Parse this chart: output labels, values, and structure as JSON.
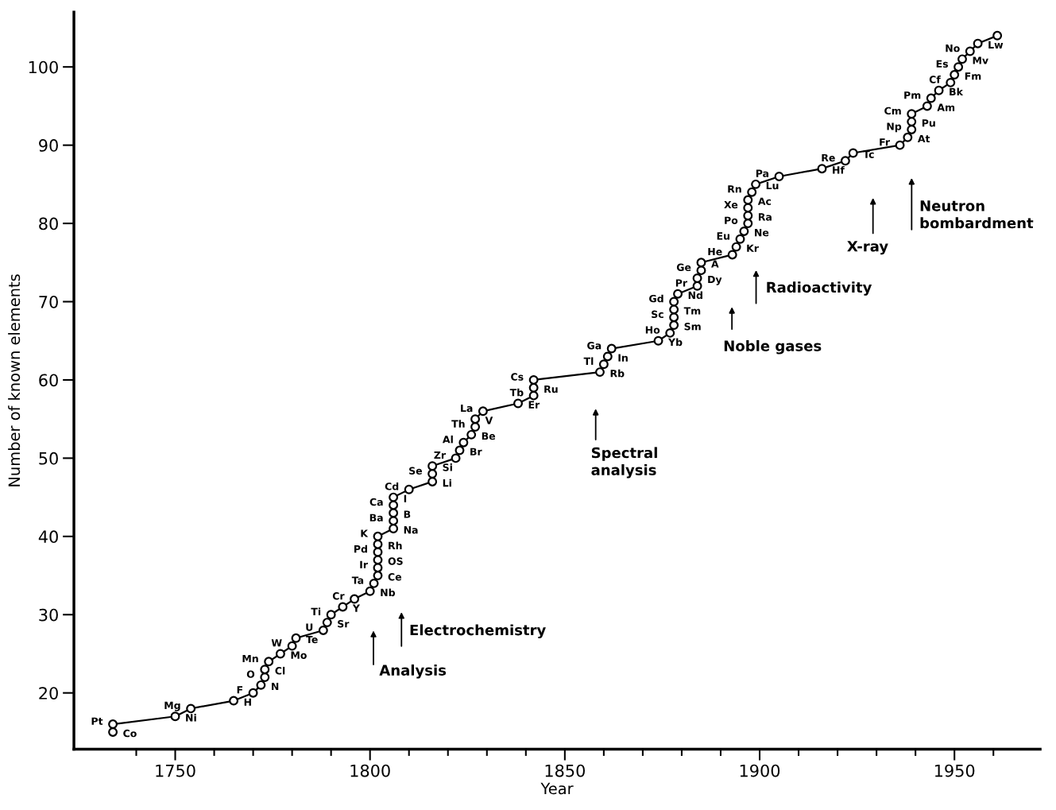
{
  "chart_data": {
    "type": "line",
    "xlabel": "Year",
    "ylabel": "Number of known elements",
    "x": [
      1734,
      1734,
      1750,
      1754,
      1765,
      1770,
      1772,
      1773,
      1773,
      1774,
      1777,
      1780,
      1781,
      1788,
      1789,
      1790,
      1793,
      1796,
      1800,
      1801,
      1802,
      1802,
      1802,
      1802,
      1802,
      1802,
      1806,
      1806,
      1806,
      1806,
      1806,
      1810,
      1816,
      1816,
      1816,
      1822,
      1823,
      1824,
      1826,
      1827,
      1827,
      1829,
      1838,
      1842,
      1842,
      1842,
      1859,
      1860,
      1861,
      1862,
      1874,
      1877,
      1878,
      1878,
      1878,
      1878,
      1879,
      1884,
      1884,
      1885,
      1885,
      1893,
      1894,
      1895,
      1896,
      1897,
      1897,
      1897,
      1897,
      1898,
      1899,
      1905,
      1916,
      1922,
      1924,
      1936,
      1938,
      1939,
      1939,
      1939,
      1943,
      1944,
      1946,
      1949,
      1950,
      1951,
      1952,
      1954,
      1956,
      1961
    ],
    "series": [
      {
        "color": "#000000",
        "values": [
          15,
          16,
          17,
          18,
          19,
          20,
          21,
          22,
          23,
          24,
          25,
          26,
          27,
          28,
          29,
          30,
          31,
          32,
          33,
          34,
          35,
          36,
          37,
          38,
          39,
          40,
          41,
          42,
          43,
          44,
          45,
          46,
          47,
          48,
          49,
          50,
          51,
          52,
          53,
          54,
          55,
          56,
          57,
          58,
          59,
          60,
          61,
          62,
          63,
          64,
          65,
          66,
          67,
          68,
          69,
          70,
          71,
          72,
          73,
          74,
          75,
          76,
          77,
          78,
          79,
          80,
          81,
          82,
          83,
          84,
          85,
          86,
          87,
          88,
          89,
          90,
          91,
          92,
          93,
          94,
          95,
          96,
          97,
          98,
          99,
          100,
          101,
          102,
          103,
          104
        ]
      }
    ],
    "marker": "circle",
    "line_style": "solid",
    "grid": false,
    "xlim": [
      1724,
      1972
    ],
    "ylim": [
      12.8,
      107
    ],
    "xticks": [
      {
        "value": 1740,
        "label": null
      },
      1750,
      {
        "value": 1760,
        "label": null
      },
      {
        "value": 1770,
        "label": null
      },
      {
        "value": 1780,
        "label": null
      },
      {
        "value": 1790,
        "label": null
      },
      1800,
      {
        "value": 1810,
        "label": null
      },
      {
        "value": 1820,
        "label": null
      },
      {
        "value": 1830,
        "label": null
      },
      {
        "value": 1840,
        "label": null
      },
      1850,
      {
        "value": 1860,
        "label": null
      },
      {
        "value": 1870,
        "label": null
      },
      {
        "value": 1880,
        "label": null
      },
      {
        "value": 1890,
        "label": null
      },
      1900,
      {
        "value": 1910,
        "label": null
      },
      {
        "value": 1920,
        "label": null
      },
      {
        "value": 1930,
        "label": null
      },
      {
        "value": 1940,
        "label": null
      },
      1950,
      {
        "value": 1960,
        "label": null
      }
    ],
    "yticks": [
      20,
      30,
      40,
      50,
      60,
      70,
      80,
      90,
      100
    ],
    "annotations": [
      {
        "text": "Co",
        "x": 1734,
        "y": 15
      },
      {
        "text": "Pt",
        "x": 1734,
        "y": 16
      },
      {
        "text": "Ni",
        "x": 1750,
        "y": 17
      },
      {
        "text": "Mg",
        "x": 1754,
        "y": 18
      },
      {
        "text": "H",
        "x": 1765,
        "y": 19
      },
      {
        "text": "F",
        "x": 1770,
        "y": 20
      },
      {
        "text": "N",
        "x": 1772,
        "y": 21
      },
      {
        "text": "O",
        "x": 1773,
        "y": 22
      },
      {
        "text": "Cl",
        "x": 1773,
        "y": 23
      },
      {
        "text": "Mn",
        "x": 1774,
        "y": 24
      },
      {
        "text": "Mo",
        "x": 1777,
        "y": 25
      },
      {
        "text": "W",
        "x": 1780,
        "y": 26
      },
      {
        "text": "Te",
        "x": 1781,
        "y": 27
      },
      {
        "text": "U",
        "x": 1788,
        "y": 28
      },
      {
        "text": "Sr",
        "x": 1789,
        "y": 29
      },
      {
        "text": "Ti",
        "x": 1790,
        "y": 30
      },
      {
        "text": "Y",
        "x": 1793,
        "y": 31
      },
      {
        "text": "Cr",
        "x": 1796,
        "y": 32
      },
      {
        "text": "Nb",
        "x": 1800,
        "y": 33
      },
      {
        "text": "Ta",
        "x": 1801,
        "y": 34
      },
      {
        "text": "Ce",
        "x": 1802,
        "y": 35
      },
      {
        "text": "Ir",
        "x": 1802,
        "y": 36
      },
      {
        "text": "OS",
        "x": 1802,
        "y": 37
      },
      {
        "text": "Pd",
        "x": 1802,
        "y": 38
      },
      {
        "text": "Rh",
        "x": 1802,
        "y": 39
      },
      {
        "text": "K",
        "x": 1802,
        "y": 40
      },
      {
        "text": "Na",
        "x": 1806,
        "y": 41
      },
      {
        "text": "Ba",
        "x": 1806,
        "y": 42
      },
      {
        "text": "B",
        "x": 1806,
        "y": 43
      },
      {
        "text": "Ca",
        "x": 1806,
        "y": 44
      },
      {
        "text": "I",
        "x": 1806,
        "y": 45
      },
      {
        "text": "Cd",
        "x": 1810,
        "y": 46
      },
      {
        "text": "Li",
        "x": 1816,
        "y": 47
      },
      {
        "text": "Se",
        "x": 1816,
        "y": 48
      },
      {
        "text": "Si",
        "x": 1816,
        "y": 49
      },
      {
        "text": "Zr",
        "x": 1822,
        "y": 50
      },
      {
        "text": "Br",
        "x": 1823,
        "y": 51
      },
      {
        "text": "Al",
        "x": 1824,
        "y": 52
      },
      {
        "text": "Be",
        "x": 1826,
        "y": 53
      },
      {
        "text": "Th",
        "x": 1827,
        "y": 54
      },
      {
        "text": "V",
        "x": 1827,
        "y": 55
      },
      {
        "text": "La",
        "x": 1829,
        "y": 56
      },
      {
        "text": "Er",
        "x": 1838,
        "y": 57
      },
      {
        "text": "Tb",
        "x": 1842,
        "y": 58
      },
      {
        "text": "Ru",
        "x": 1842,
        "y": 59
      },
      {
        "text": "Cs",
        "x": 1842,
        "y": 60
      },
      {
        "text": "Rb",
        "x": 1859,
        "y": 61
      },
      {
        "text": "Tl",
        "x": 1860,
        "y": 62
      },
      {
        "text": "In",
        "x": 1861,
        "y": 63
      },
      {
        "text": "Ga",
        "x": 1862,
        "y": 64
      },
      {
        "text": "Yb",
        "x": 1874,
        "y": 65
      },
      {
        "text": "Ho",
        "x": 1877,
        "y": 66
      },
      {
        "text": "Sm",
        "x": 1878,
        "y": 67
      },
      {
        "text": "Sc",
        "x": 1878,
        "y": 68
      },
      {
        "text": "Tm",
        "x": 1878,
        "y": 69
      },
      {
        "text": "Gd",
        "x": 1878,
        "y": 70
      },
      {
        "text": "Nd",
        "x": 1879,
        "y": 71
      },
      {
        "text": "Pr",
        "x": 1884,
        "y": 72
      },
      {
        "text": "Dy",
        "x": 1884,
        "y": 73
      },
      {
        "text": "Ge",
        "x": 1885,
        "y": 74
      },
      {
        "text": "A",
        "x": 1885,
        "y": 75
      },
      {
        "text": "He",
        "x": 1893,
        "y": 76
      },
      {
        "text": "Kr",
        "x": 1894,
        "y": 77
      },
      {
        "text": "Eu",
        "x": 1895,
        "y": 78
      },
      {
        "text": "Ne",
        "x": 1896,
        "y": 79
      },
      {
        "text": "Po",
        "x": 1897,
        "y": 80
      },
      {
        "text": "Ra",
        "x": 1897,
        "y": 81
      },
      {
        "text": "Xe",
        "x": 1897,
        "y": 82
      },
      {
        "text": "Ac",
        "x": 1897,
        "y": 83
      },
      {
        "text": "Rn",
        "x": 1898,
        "y": 84
      },
      {
        "text": "Lu",
        "x": 1899,
        "y": 85
      },
      {
        "text": "Pa",
        "x": 1905,
        "y": 86
      },
      {
        "text": "Hf",
        "x": 1916,
        "y": 87
      },
      {
        "text": "Re",
        "x": 1922,
        "y": 88
      },
      {
        "text": "Tc",
        "x": 1924,
        "y": 89
      },
      {
        "text": "Fr",
        "x": 1936,
        "y": 90
      },
      {
        "text": "At",
        "x": 1938,
        "y": 91
      },
      {
        "text": "Np",
        "x": 1939,
        "y": 92
      },
      {
        "text": "Pu",
        "x": 1939,
        "y": 93
      },
      {
        "text": "Cm",
        "x": 1939,
        "y": 94
      },
      {
        "text": "Am",
        "x": 1943,
        "y": 95
      },
      {
        "text": "Pm",
        "x": 1944,
        "y": 96
      },
      {
        "text": "Bk",
        "x": 1946,
        "y": 97
      },
      {
        "text": "Cf",
        "x": 1949,
        "y": 98
      },
      {
        "text": "Fm",
        "x": 1950,
        "y": 99
      },
      {
        "text": "Es",
        "x": 1951,
        "y": 100
      },
      {
        "text": "Mv",
        "x": 1952,
        "y": 101
      },
      {
        "text": "No",
        "x": 1954,
        "y": 102
      },
      {
        "text": "Lw",
        "x": 1956,
        "y": 103
      },
      "Analysis",
      "Electrochemistry",
      "Spectral\nanalysis",
      "Noble gases",
      "Radioactivity",
      "X-ray",
      "Neutron\nbombardment"
    ]
  }
}
